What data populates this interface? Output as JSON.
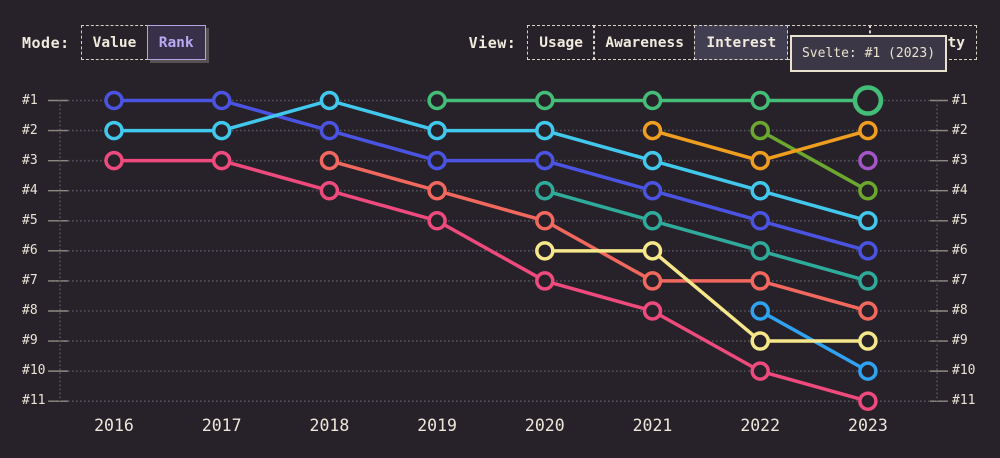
{
  "controls": {
    "mode": {
      "label": "Mode:",
      "options": [
        {
          "label": "Value",
          "selected": false
        },
        {
          "label": "Rank",
          "selected": true
        }
      ]
    },
    "view": {
      "label": "View:",
      "options": [
        {
          "label": "Usage",
          "selected": false
        },
        {
          "label": "Awareness",
          "selected": false
        },
        {
          "label": "Interest",
          "selected": true
        },
        {
          "label": "",
          "selected": false,
          "obscured_by_tooltip": true
        },
        {
          "label": "ty",
          "selected": false,
          "obscured_by_tooltip": true
        }
      ]
    }
  },
  "tooltip": {
    "text": "Svelte: #1 (2023)"
  },
  "palette": {
    "background": "#272229",
    "text_cream": "#ece6d9",
    "selected_accent": "#b9a9f2",
    "selected_bg": "#373048",
    "gridline": "#57525b",
    "tick": "#8c8880",
    "tooltip_border": "#e9e2cf",
    "tooltip_bg": "#3b3746"
  },
  "chart_data": {
    "type": "line",
    "subtype": "rank-bump-chart",
    "title": "",
    "x": [
      2016,
      2017,
      2018,
      2019,
      2020,
      2021,
      2022,
      2023
    ],
    "y_axis_labels": [
      "#1",
      "#2",
      "#3",
      "#4",
      "#5",
      "#6",
      "#7",
      "#8",
      "#9",
      "#10",
      "#11"
    ],
    "ylim": [
      1,
      11
    ],
    "y_inverted": true,
    "grid": "dotted horizontal lines per rank, dotted vertical axis lines left and right",
    "legend": "none (series identified by color; hovered series is Svelte per tooltip)",
    "series": [
      {
        "id": "series-pink",
        "color": "#ee4a7d",
        "values": [
          3,
          3,
          4,
          5,
          7,
          8,
          10,
          11
        ]
      },
      {
        "id": "series-skyblue",
        "color": "#2fa2f2",
        "values": [
          null,
          null,
          null,
          null,
          null,
          null,
          8,
          10
        ]
      },
      {
        "id": "series-olive",
        "color": "#6ca82f",
        "values": [
          null,
          null,
          null,
          null,
          null,
          null,
          2,
          4
        ]
      },
      {
        "id": "series-orange",
        "color": "#ef9e1f",
        "values": [
          null,
          null,
          null,
          null,
          null,
          2,
          3,
          2
        ]
      },
      {
        "id": "series-teal",
        "color": "#2fab9b",
        "values": [
          null,
          null,
          null,
          null,
          4,
          5,
          6,
          7
        ]
      },
      {
        "id": "series-blue",
        "color": "#4b54e2",
        "values": [
          1,
          1,
          2,
          3,
          3,
          4,
          5,
          6
        ]
      },
      {
        "id": "series-cyan",
        "color": "#42c8ec",
        "values": [
          2,
          2,
          1,
          2,
          2,
          3,
          4,
          5
        ]
      },
      {
        "id": "series-salmon",
        "color": "#f2685f",
        "values": [
          null,
          null,
          3,
          4,
          5,
          7,
          7,
          8
        ]
      },
      {
        "id": "series-yellow",
        "color": "#f5e78a",
        "values": [
          null,
          null,
          null,
          null,
          6,
          6,
          9,
          9
        ]
      },
      {
        "id": "svelte",
        "color": "#43bd77",
        "values": [
          null,
          null,
          null,
          1,
          1,
          1,
          1,
          1
        ]
      },
      {
        "id": "series-purple",
        "color": "#a455c8",
        "values": [
          null,
          null,
          null,
          null,
          null,
          null,
          null,
          3
        ]
      }
    ],
    "highlight_point": {
      "series": "svelte",
      "year": 2023,
      "rank": 1
    }
  }
}
